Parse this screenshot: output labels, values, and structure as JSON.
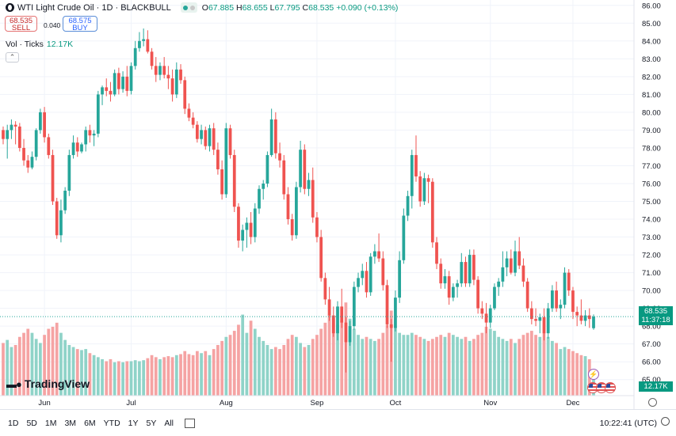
{
  "header": {
    "symbol_title": "WTI Light Crude Oil · 1D · BLACKBULL",
    "o_label": "O",
    "o_value": "67.885",
    "h_label": "H",
    "h_value": "68.655",
    "l_label": "L",
    "l_value": "67.795",
    "c_label": "C",
    "c_value": "68.535",
    "change": "+0.090 (+0.13%)"
  },
  "trade": {
    "sell_price": "68.535",
    "sell_label": "SELL",
    "spread": "0.040",
    "buy_price": "68.575",
    "buy_label": "BUY"
  },
  "volume_legend": {
    "label": "Vol · Ticks",
    "value": "12.17K"
  },
  "brand": "TradingView",
  "badges": {
    "last_price": "68.535",
    "countdown": "11:37:18",
    "volume": "12.17K"
  },
  "bottom_bar": {
    "ranges": [
      "1D",
      "5D",
      "1M",
      "3M",
      "6M",
      "YTD",
      "1Y",
      "5Y",
      "All"
    ],
    "time": "10:22:41 (UTC)"
  },
  "colors": {
    "up": "#26a69a",
    "down": "#ef5350",
    "up_vol": "#8fd3c8",
    "down_vol": "#f5a3a3",
    "grid": "#f0f3fa"
  },
  "chart_data": {
    "type": "candlestick",
    "title": "WTI Light Crude Oil · 1D · BLACKBULL",
    "y_ticks": [
      65,
      66,
      67,
      68,
      69,
      70,
      71,
      72,
      73,
      74,
      75,
      76,
      77,
      78,
      79,
      80,
      81,
      82,
      83,
      84,
      85,
      86
    ],
    "y_tick_labels": [
      "65.00",
      "66.00",
      "67.00",
      "68.00",
      "69.00",
      "70.00",
      "71.00",
      "72.00",
      "73.00",
      "74.00",
      "75.00",
      "76.00",
      "77.00",
      "78.00",
      "79.00",
      "80.00",
      "81.00",
      "82.00",
      "83.00",
      "84.00",
      "85.00",
      "86.00"
    ],
    "ylim": [
      64.1,
      86.3
    ],
    "x_labels": [
      {
        "label": "Jun",
        "index": 10
      },
      {
        "label": "Jul",
        "index": 31
      },
      {
        "label": "Aug",
        "index": 54
      },
      {
        "label": "Sep",
        "index": 76
      },
      {
        "label": "Oct",
        "index": 95
      },
      {
        "label": "Nov",
        "index": 118
      },
      {
        "label": "Dec",
        "index": 138
      }
    ],
    "last_price": 68.535,
    "candles": [
      [
        79.0,
        79.2,
        78.2,
        78.5,
        52
      ],
      [
        78.5,
        79.3,
        77.4,
        79.0,
        55
      ],
      [
        79.0,
        79.6,
        78.5,
        79.3,
        48
      ],
      [
        79.3,
        79.5,
        78.2,
        79.2,
        50
      ],
      [
        79.2,
        79.4,
        77.8,
        78.0,
        58
      ],
      [
        78.0,
        78.5,
        77.0,
        77.3,
        62
      ],
      [
        77.3,
        77.6,
        76.6,
        76.9,
        66
      ],
      [
        76.9,
        77.8,
        76.8,
        77.5,
        62
      ],
      [
        77.5,
        79.1,
        77.3,
        79.0,
        56
      ],
      [
        79.0,
        80.2,
        78.8,
        80.0,
        52
      ],
      [
        80.0,
        80.3,
        78.3,
        78.6,
        60
      ],
      [
        78.6,
        78.8,
        77.4,
        77.6,
        66
      ],
      [
        77.6,
        77.9,
        74.8,
        75.0,
        68
      ],
      [
        75.0,
        75.2,
        72.9,
        73.1,
        72
      ],
      [
        73.1,
        75.1,
        72.7,
        74.5,
        62
      ],
      [
        74.5,
        75.8,
        74.3,
        75.6,
        55
      ],
      [
        75.6,
        77.9,
        75.3,
        77.6,
        50
      ],
      [
        77.6,
        78.7,
        77.4,
        78.3,
        48
      ],
      [
        78.3,
        78.6,
        77.5,
        77.8,
        46
      ],
      [
        77.8,
        78.3,
        77.7,
        78.2,
        45
      ],
      [
        78.2,
        79.2,
        77.8,
        79.0,
        46
      ],
      [
        79.0,
        79.3,
        78.3,
        78.7,
        42
      ],
      [
        78.7,
        79.0,
        78.1,
        78.8,
        40
      ],
      [
        78.8,
        81.2,
        78.6,
        81.0,
        38
      ],
      [
        81.0,
        81.5,
        80.4,
        81.4,
        36
      ],
      [
        81.4,
        81.9,
        80.9,
        81.2,
        34
      ],
      [
        81.2,
        81.7,
        80.6,
        81.0,
        36
      ],
      [
        81.0,
        82.4,
        80.9,
        82.2,
        33
      ],
      [
        82.2,
        82.5,
        81.0,
        81.3,
        34
      ],
      [
        81.3,
        82.3,
        81.1,
        82.0,
        33
      ],
      [
        82.0,
        82.6,
        80.9,
        81.2,
        34
      ],
      [
        81.2,
        82.8,
        81.0,
        82.6,
        34
      ],
      [
        82.6,
        84.0,
        82.4,
        83.6,
        35
      ],
      [
        83.6,
        84.5,
        83.4,
        84.0,
        34
      ],
      [
        84.0,
        84.7,
        83.7,
        84.1,
        35
      ],
      [
        84.1,
        84.6,
        83.3,
        83.4,
        37
      ],
      [
        83.4,
        83.6,
        82.4,
        82.6,
        40
      ],
      [
        82.6,
        83.1,
        81.7,
        82.1,
        38
      ],
      [
        82.1,
        82.8,
        81.8,
        82.6,
        36
      ],
      [
        82.6,
        83.1,
        81.9,
        82.1,
        38
      ],
      [
        82.1,
        82.6,
        81.3,
        81.9,
        39
      ],
      [
        81.9,
        82.4,
        80.6,
        81.0,
        38
      ],
      [
        81.0,
        82.8,
        80.8,
        82.4,
        40
      ],
      [
        82.4,
        82.7,
        81.6,
        81.8,
        41
      ],
      [
        81.8,
        82.0,
        79.9,
        80.2,
        44
      ],
      [
        80.2,
        80.5,
        79.5,
        79.7,
        41
      ],
      [
        79.7,
        80.0,
        79.1,
        79.3,
        40
      ],
      [
        79.3,
        79.5,
        78.3,
        78.5,
        44
      ],
      [
        78.5,
        79.3,
        78.2,
        79.0,
        42
      ],
      [
        79.0,
        79.2,
        77.9,
        78.1,
        44
      ],
      [
        78.1,
        79.3,
        77.8,
        79.1,
        40
      ],
      [
        79.1,
        79.4,
        77.6,
        77.9,
        46
      ],
      [
        77.9,
        78.3,
        76.5,
        76.8,
        50
      ],
      [
        76.8,
        77.3,
        75.1,
        75.4,
        54
      ],
      [
        75.4,
        79.4,
        75.2,
        79.1,
        58
      ],
      [
        79.1,
        79.3,
        77.4,
        77.6,
        60
      ],
      [
        77.6,
        77.9,
        74.4,
        74.7,
        64
      ],
      [
        74.7,
        74.9,
        72.4,
        72.8,
        70
      ],
      [
        72.8,
        73.7,
        72.2,
        73.4,
        80
      ],
      [
        73.4,
        74.1,
        72.4,
        73.8,
        62
      ],
      [
        73.8,
        74.4,
        72.6,
        73.0,
        74
      ],
      [
        73.0,
        74.9,
        72.7,
        74.6,
        66
      ],
      [
        74.6,
        75.9,
        74.3,
        75.7,
        58
      ],
      [
        75.7,
        76.2,
        75.1,
        76.0,
        54
      ],
      [
        76.0,
        77.8,
        75.8,
        77.6,
        50
      ],
      [
        77.6,
        80.2,
        77.5,
        79.6,
        46
      ],
      [
        79.6,
        80.0,
        77.4,
        77.7,
        48
      ],
      [
        77.7,
        78.3,
        76.9,
        77.3,
        46
      ],
      [
        77.3,
        77.6,
        75.1,
        75.4,
        50
      ],
      [
        75.4,
        75.8,
        73.7,
        74.0,
        56
      ],
      [
        74.0,
        74.3,
        72.8,
        73.1,
        60
      ],
      [
        73.1,
        76.1,
        72.9,
        75.8,
        58
      ],
      [
        75.8,
        78.4,
        75.5,
        77.9,
        52
      ],
      [
        77.9,
        78.2,
        75.4,
        75.7,
        48
      ],
      [
        75.7,
        76.6,
        75.3,
        76.2,
        50
      ],
      [
        76.2,
        76.9,
        73.8,
        74.1,
        56
      ],
      [
        74.1,
        74.4,
        72.7,
        73.0,
        60
      ],
      [
        73.0,
        73.4,
        70.5,
        70.7,
        66
      ],
      [
        70.7,
        71.0,
        69.2,
        69.5,
        72
      ],
      [
        69.5,
        70.2,
        68.3,
        68.6,
        80
      ],
      [
        68.6,
        69.1,
        67.4,
        67.6,
        76
      ],
      [
        67.6,
        69.4,
        67.2,
        69.1,
        70
      ],
      [
        69.1,
        70.1,
        67.9,
        68.2,
        74
      ],
      [
        68.2,
        68.5,
        65.4,
        67.1,
        92
      ],
      [
        67.1,
        68.3,
        66.9,
        68.0,
        76
      ],
      [
        68.0,
        70.5,
        67.8,
        70.2,
        66
      ],
      [
        70.2,
        71.0,
        69.9,
        70.7,
        60
      ],
      [
        70.7,
        71.5,
        70.3,
        71.1,
        56
      ],
      [
        71.1,
        71.6,
        69.6,
        69.9,
        58
      ],
      [
        69.9,
        72.1,
        69.7,
        71.9,
        56
      ],
      [
        71.9,
        72.6,
        71.5,
        72.2,
        54
      ],
      [
        72.2,
        73.2,
        71.6,
        71.8,
        56
      ],
      [
        71.8,
        72.2,
        70.0,
        70.3,
        62
      ],
      [
        70.3,
        70.6,
        67.9,
        68.1,
        70
      ],
      [
        68.1,
        68.4,
        66.0,
        67.9,
        84
      ],
      [
        67.9,
        70.0,
        67.7,
        69.6,
        68
      ],
      [
        69.6,
        72.2,
        69.3,
        71.7,
        62
      ],
      [
        71.7,
        74.6,
        71.5,
        74.2,
        60
      ],
      [
        74.2,
        75.6,
        73.9,
        75.3,
        60
      ],
      [
        75.3,
        77.9,
        74.6,
        77.6,
        62
      ],
      [
        77.6,
        78.7,
        76.1,
        76.4,
        60
      ],
      [
        76.4,
        76.7,
        74.7,
        75.0,
        58
      ],
      [
        75.0,
        76.6,
        74.8,
        76.3,
        56
      ],
      [
        76.3,
        76.5,
        74.9,
        76.1,
        54
      ],
      [
        76.1,
        76.3,
        72.4,
        72.7,
        56
      ],
      [
        72.7,
        73.0,
        71.2,
        71.5,
        58
      ],
      [
        71.5,
        71.8,
        70.1,
        70.4,
        60
      ],
      [
        70.4,
        71.2,
        70.1,
        70.8,
        58
      ],
      [
        70.8,
        71.1,
        69.2,
        69.6,
        62
      ],
      [
        69.6,
        70.4,
        69.4,
        70.2,
        60
      ],
      [
        70.2,
        70.6,
        69.6,
        70.4,
        58
      ],
      [
        70.4,
        72.1,
        70.2,
        71.6,
        56
      ],
      [
        71.6,
        71.9,
        70.2,
        70.4,
        58
      ],
      [
        70.4,
        72.3,
        70.2,
        72.0,
        54
      ],
      [
        72.0,
        72.3,
        70.3,
        70.6,
        56
      ],
      [
        70.6,
        70.8,
        68.7,
        69.0,
        60
      ],
      [
        69.0,
        69.4,
        68.4,
        68.7,
        62
      ],
      [
        68.7,
        69.3,
        67.6,
        68.2,
        68
      ],
      [
        68.2,
        69.2,
        67.9,
        69.0,
        66
      ],
      [
        69.0,
        70.4,
        68.9,
        70.2,
        64
      ],
      [
        70.2,
        70.7,
        69.7,
        70.5,
        58
      ],
      [
        70.5,
        72.2,
        70.2,
        71.3,
        56
      ],
      [
        71.3,
        72.2,
        70.8,
        71.8,
        54
      ],
      [
        71.8,
        72.3,
        70.9,
        71.0,
        56
      ],
      [
        71.0,
        72.8,
        70.8,
        72.2,
        52
      ],
      [
        72.2,
        73.0,
        71.2,
        71.4,
        56
      ],
      [
        71.4,
        71.8,
        70.2,
        70.5,
        60
      ],
      [
        70.5,
        70.7,
        68.8,
        69.0,
        62
      ],
      [
        69.0,
        69.4,
        68.1,
        68.4,
        64
      ],
      [
        68.4,
        69.0,
        68.0,
        68.3,
        60
      ],
      [
        68.3,
        68.7,
        67.6,
        68.5,
        58
      ],
      [
        68.5,
        69.0,
        67.2,
        67.6,
        62
      ],
      [
        67.6,
        69.3,
        67.3,
        69.0,
        58
      ],
      [
        69.0,
        70.3,
        68.8,
        70.0,
        54
      ],
      [
        70.0,
        70.5,
        68.8,
        69.0,
        52
      ],
      [
        69.0,
        69.5,
        68.4,
        69.2,
        46
      ],
      [
        69.2,
        71.3,
        69.0,
        71.0,
        48
      ],
      [
        71.0,
        71.2,
        69.7,
        70.0,
        46
      ],
      [
        70.0,
        70.2,
        68.4,
        68.8,
        44
      ],
      [
        68.8,
        69.1,
        68.0,
        68.6,
        42
      ],
      [
        68.6,
        69.5,
        68.1,
        68.3,
        40
      ],
      [
        68.3,
        68.9,
        68.0,
        68.6,
        39
      ],
      [
        68.6,
        69.0,
        67.9,
        68.4,
        36
      ],
      [
        67.885,
        68.655,
        67.795,
        68.535,
        22
      ]
    ]
  }
}
